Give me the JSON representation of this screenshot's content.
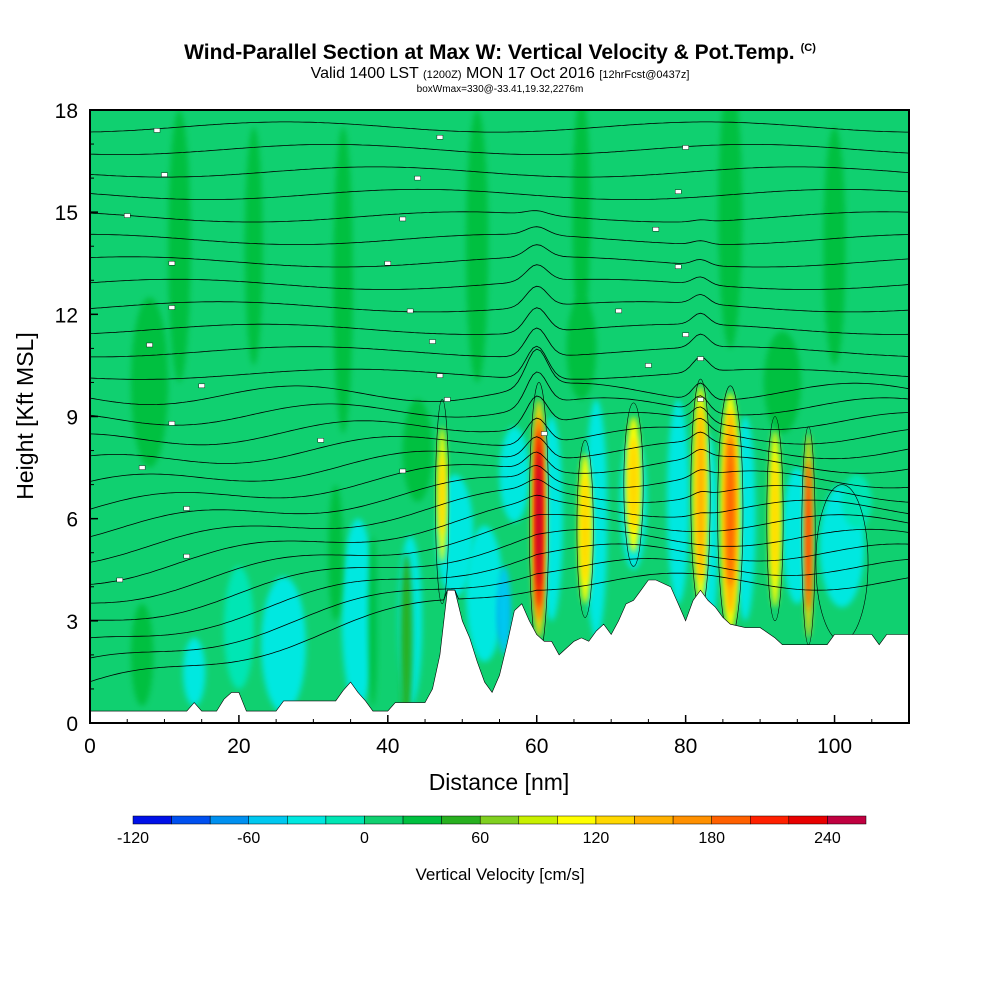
{
  "title": {
    "main": "Wind-Parallel Section at Max W: Vertical Velocity & Pot.Temp.",
    "copyright": "(C)",
    "sub_valid": "Valid 1400 LST",
    "sub_utc": "(1200Z)",
    "sub_date": "MON 17 Oct 2016",
    "sub_fcst": "[12hrFcst@0437z]",
    "sub2": "boxWmax=330@-33.41,19.32,2276m"
  },
  "chart_data": {
    "type": "heatmap",
    "xlabel": "Distance [nm]",
    "ylabel": "Height [Kft MSL]",
    "xlim": [
      0,
      110
    ],
    "ylim": [
      0,
      18
    ],
    "x_ticks": [
      0,
      20,
      40,
      60,
      80,
      100
    ],
    "y_ticks": [
      0,
      3,
      6,
      9,
      12,
      15,
      18
    ],
    "colorbar": {
      "title": "Vertical Velocity [cm/s]",
      "levels": [
        -120,
        -100,
        -80,
        -60,
        -40,
        -20,
        0,
        20,
        40,
        60,
        80,
        100,
        120,
        140,
        160,
        180,
        200,
        220,
        240,
        260
      ],
      "tick_labels": [
        "-120",
        "-60",
        "0",
        "60",
        "120",
        "180",
        "240"
      ],
      "tick_values": [
        -120,
        -60,
        0,
        60,
        120,
        180,
        240
      ],
      "colors": [
        "#0010e8",
        "#0050f0",
        "#0090f0",
        "#00c8f0",
        "#00e8e0",
        "#00e6b4",
        "#10d070",
        "#00c040",
        "#28b020",
        "#80d020",
        "#c8f000",
        "#ffff00",
        "#ffd800",
        "#ffb000",
        "#ff9000",
        "#ff6000",
        "#ff2000",
        "#e80000",
        "#c00040"
      ]
    },
    "terrain_kft": [
      [
        0,
        0.35
      ],
      [
        3,
        0.35
      ],
      [
        5,
        0.35
      ],
      [
        10,
        0.35
      ],
      [
        13,
        0.35
      ],
      [
        14,
        0.6
      ],
      [
        15,
        0.35
      ],
      [
        17,
        0.35
      ],
      [
        18,
        0.7
      ],
      [
        19,
        0.9
      ],
      [
        20,
        0.9
      ],
      [
        21,
        0.35
      ],
      [
        25,
        0.35
      ],
      [
        26,
        0.65
      ],
      [
        33,
        0.65
      ],
      [
        34,
        0.95
      ],
      [
        35,
        1.2
      ],
      [
        36,
        0.9
      ],
      [
        37,
        0.65
      ],
      [
        38,
        0.35
      ],
      [
        40,
        0.35
      ],
      [
        41,
        0.6
      ],
      [
        45,
        0.6
      ],
      [
        46,
        1.0
      ],
      [
        47,
        2.0
      ],
      [
        48,
        3.9
      ],
      [
        49,
        3.9
      ],
      [
        50,
        3.0
      ],
      [
        51,
        2.5
      ],
      [
        52,
        1.8
      ],
      [
        53,
        1.2
      ],
      [
        54,
        0.9
      ],
      [
        55,
        1.4
      ],
      [
        56,
        2.3
      ],
      [
        57,
        3.3
      ],
      [
        58,
        3.5
      ],
      [
        59,
        3.0
      ],
      [
        60,
        2.6
      ],
      [
        61,
        2.4
      ],
      [
        62,
        2.4
      ],
      [
        63,
        2.0
      ],
      [
        64,
        2.2
      ],
      [
        65,
        2.4
      ],
      [
        66,
        2.5
      ],
      [
        67,
        2.4
      ],
      [
        68,
        2.7
      ],
      [
        69,
        2.9
      ],
      [
        70,
        2.6
      ],
      [
        71,
        3.0
      ],
      [
        72,
        3.5
      ],
      [
        73,
        3.6
      ],
      [
        74,
        3.9
      ],
      [
        75,
        4.2
      ],
      [
        76,
        4.2
      ],
      [
        78,
        4.0
      ],
      [
        79,
        3.5
      ],
      [
        80,
        3.0
      ],
      [
        81,
        3.6
      ],
      [
        82,
        3.9
      ],
      [
        83,
        3.6
      ],
      [
        84,
        3.4
      ],
      [
        85,
        3.1
      ],
      [
        86,
        2.9
      ],
      [
        88,
        2.8
      ],
      [
        90,
        2.8
      ],
      [
        92,
        2.5
      ],
      [
        93,
        2.3
      ],
      [
        99,
        2.3
      ],
      [
        100,
        2.6
      ],
      [
        105,
        2.6
      ],
      [
        106,
        2.3
      ],
      [
        107,
        2.6
      ],
      [
        110,
        2.6
      ]
    ],
    "isentrope_labels": [
      {
        "x": 9,
        "y": 17.4
      },
      {
        "x": 10,
        "y": 16.1
      },
      {
        "x": 11,
        "y": 13.5
      },
      {
        "x": 5,
        "y": 14.9
      },
      {
        "x": 11,
        "y": 12.2
      },
      {
        "x": 8,
        "y": 11.1
      },
      {
        "x": 15,
        "y": 9.9
      },
      {
        "x": 11,
        "y": 8.8
      },
      {
        "x": 7,
        "y": 7.5
      },
      {
        "x": 13,
        "y": 6.3
      },
      {
        "x": 13,
        "y": 4.9
      },
      {
        "x": 4,
        "y": 4.2
      },
      {
        "x": 31,
        "y": 8.3
      },
      {
        "x": 42,
        "y": 7.4
      },
      {
        "x": 47,
        "y": 17.2
      },
      {
        "x": 44,
        "y": 16.0
      },
      {
        "x": 42,
        "y": 14.8
      },
      {
        "x": 40,
        "y": 13.5
      },
      {
        "x": 43,
        "y": 12.1
      },
      {
        "x": 46,
        "y": 11.2
      },
      {
        "x": 47,
        "y": 10.2
      },
      {
        "x": 48,
        "y": 9.5
      },
      {
        "x": 61,
        "y": 8.5
      },
      {
        "x": 80,
        "y": 16.9
      },
      {
        "x": 79,
        "y": 15.6
      },
      {
        "x": 76,
        "y": 14.5
      },
      {
        "x": 79,
        "y": 13.4
      },
      {
        "x": 71,
        "y": 12.1
      },
      {
        "x": 80,
        "y": 11.4
      },
      {
        "x": 75,
        "y": 10.5
      },
      {
        "x": 82,
        "y": 10.7
      },
      {
        "x": 82,
        "y": 9.5
      }
    ]
  }
}
